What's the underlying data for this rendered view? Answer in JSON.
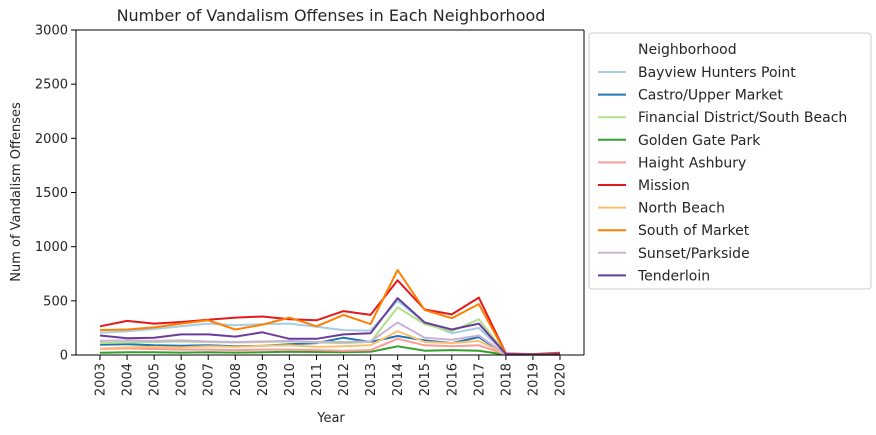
{
  "chart_data": {
    "type": "line",
    "title": "Number of Vandalism Offenses in Each Neighborhood",
    "xlabel": "Year",
    "ylabel": "Num of Vandalism Offenses",
    "ylim": [
      0,
      3000
    ],
    "yticks": [
      0,
      500,
      1000,
      1500,
      2000,
      2500,
      3000
    ],
    "x": [
      "2003",
      "2004",
      "2005",
      "2006",
      "2007",
      "2008",
      "2009",
      "2010",
      "2011",
      "2012",
      "2013",
      "2014",
      "2015",
      "2016",
      "2017",
      "2018",
      "2019",
      "2020"
    ],
    "grid": false,
    "legend": {
      "title": "Neighborhood",
      "placement": "right, outside plot"
    },
    "series": [
      {
        "name": "Bayview Hunters Point",
        "color": "#a6cee3",
        "values": [
          205,
          220,
          240,
          265,
          290,
          275,
          285,
          290,
          260,
          230,
          225,
          500,
          300,
          200,
          250,
          8,
          4,
          8
        ]
      },
      {
        "name": "Castro/Upper Market",
        "color": "#1f78b4",
        "values": [
          95,
          100,
          90,
          85,
          90,
          80,
          85,
          100,
          110,
          160,
          120,
          175,
          135,
          110,
          165,
          5,
          3,
          4
        ]
      },
      {
        "name": "Financial District/South Beach",
        "color": "#b2df8a",
        "values": [
          110,
          115,
          120,
          125,
          120,
          115,
          120,
          125,
          115,
          110,
          120,
          440,
          285,
          220,
          330,
          10,
          5,
          10
        ]
      },
      {
        "name": "Golden Gate Park",
        "color": "#33a02c",
        "values": [
          20,
          25,
          25,
          22,
          25,
          22,
          25,
          30,
          28,
          25,
          30,
          80,
          40,
          45,
          40,
          3,
          2,
          3
        ]
      },
      {
        "name": "Haight Ashbury",
        "color": "#fb9a99",
        "values": [
          55,
          60,
          55,
          50,
          50,
          45,
          50,
          50,
          45,
          40,
          45,
          150,
          90,
          80,
          90,
          4,
          2,
          3
        ]
      },
      {
        "name": "Mission",
        "color": "#e31a1c",
        "values": [
          265,
          315,
          290,
          305,
          325,
          345,
          355,
          330,
          320,
          405,
          370,
          690,
          420,
          375,
          530,
          15,
          8,
          20
        ]
      },
      {
        "name": "North Beach",
        "color": "#fdbf6f",
        "values": [
          60,
          70,
          75,
          70,
          80,
          75,
          85,
          90,
          75,
          80,
          90,
          220,
          120,
          110,
          130,
          5,
          3,
          5
        ]
      },
      {
        "name": "South of Market",
        "color": "#ff7f00",
        "values": [
          230,
          235,
          255,
          290,
          320,
          235,
          280,
          345,
          265,
          370,
          285,
          785,
          415,
          340,
          470,
          12,
          6,
          15
        ]
      },
      {
        "name": "Sunset/Parkside",
        "color": "#cab2d6",
        "values": [
          130,
          135,
          130,
          135,
          125,
          120,
          125,
          130,
          120,
          120,
          125,
          300,
          160,
          140,
          180,
          6,
          4,
          6
        ]
      },
      {
        "name": "Tenderloin",
        "color": "#6a3d9a",
        "values": [
          180,
          155,
          160,
          190,
          190,
          170,
          210,
          150,
          150,
          190,
          200,
          525,
          300,
          235,
          290,
          10,
          5,
          10
        ]
      }
    ]
  }
}
